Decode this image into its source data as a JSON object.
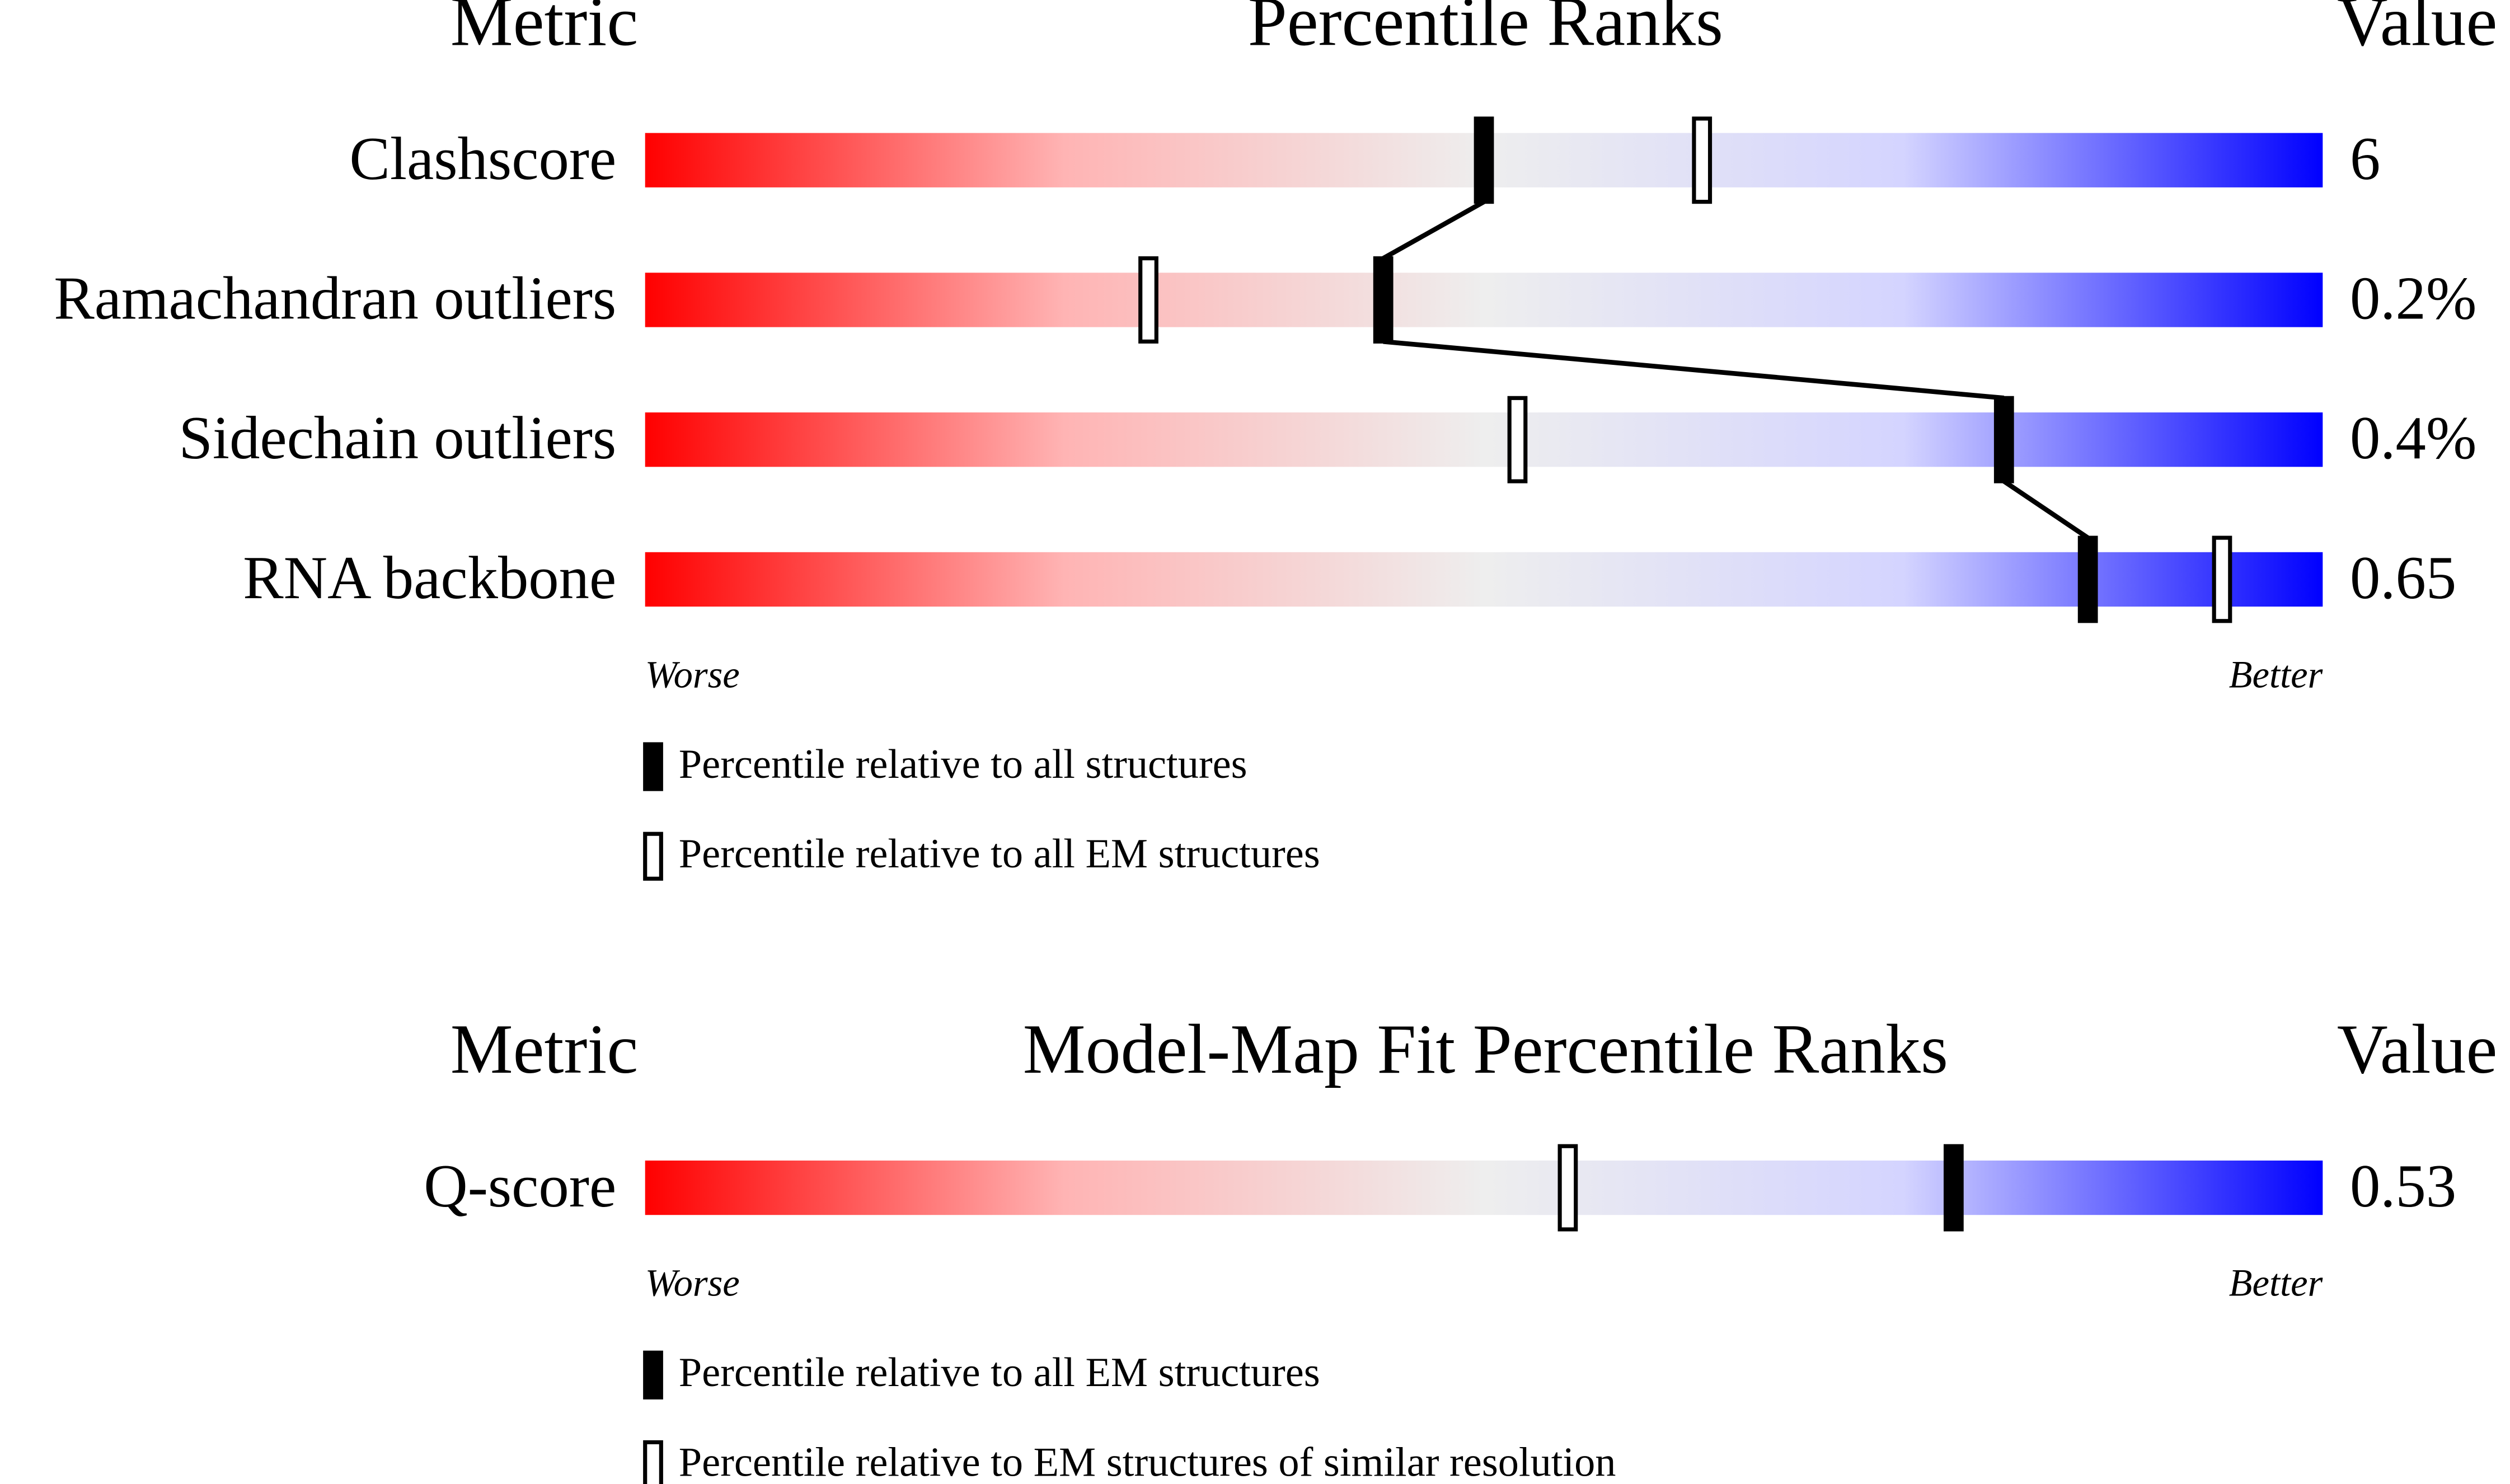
{
  "chart_data": [
    {
      "type": "slider",
      "headers": [
        "Metric",
        "Percentile Ranks",
        "Value"
      ],
      "categories": [
        "Clashscore",
        "Ramachandran outliers",
        "Sidechain outliers",
        "RNA backbone"
      ],
      "metric_values": [
        "6",
        "0.2%",
        "0.4%",
        "0.65"
      ],
      "xlim": [
        0,
        100
      ],
      "axis_labels": [
        "Worse",
        "Better"
      ],
      "bar_colors": [
        "#ff0000",
        "#ffb4b4",
        "#eeeeee",
        "#d4d4ff",
        "#0000ff"
      ],
      "series": [
        {
          "name": "Percentile relative to all structures",
          "color": "#000000",
          "values": [
            50,
            44,
            81,
            86
          ]
        },
        {
          "name": "Percentile relative to all EM structures",
          "color": "#ffffff",
          "values": [
            63,
            30,
            52,
            94
          ]
        }
      ]
    },
    {
      "type": "slider",
      "headers": [
        "Metric",
        "Model-Map Fit Percentile Ranks",
        "Value"
      ],
      "categories": [
        "Q-score"
      ],
      "metric_values": [
        "0.53"
      ],
      "xlim": [
        0,
        100
      ],
      "axis_labels": [
        "Worse",
        "Better"
      ],
      "bar_colors": [
        "#ff0000",
        "#ffb4b4",
        "#eeeeee",
        "#d4d4ff",
        "#0000ff"
      ],
      "series": [
        {
          "name": "Percentile relative to all EM structures",
          "color": "#000000",
          "values": [
            78
          ]
        },
        {
          "name": "Percentile relative to EM structures of similar resolution",
          "color": "#ffffff",
          "values": [
            55
          ]
        }
      ]
    }
  ]
}
